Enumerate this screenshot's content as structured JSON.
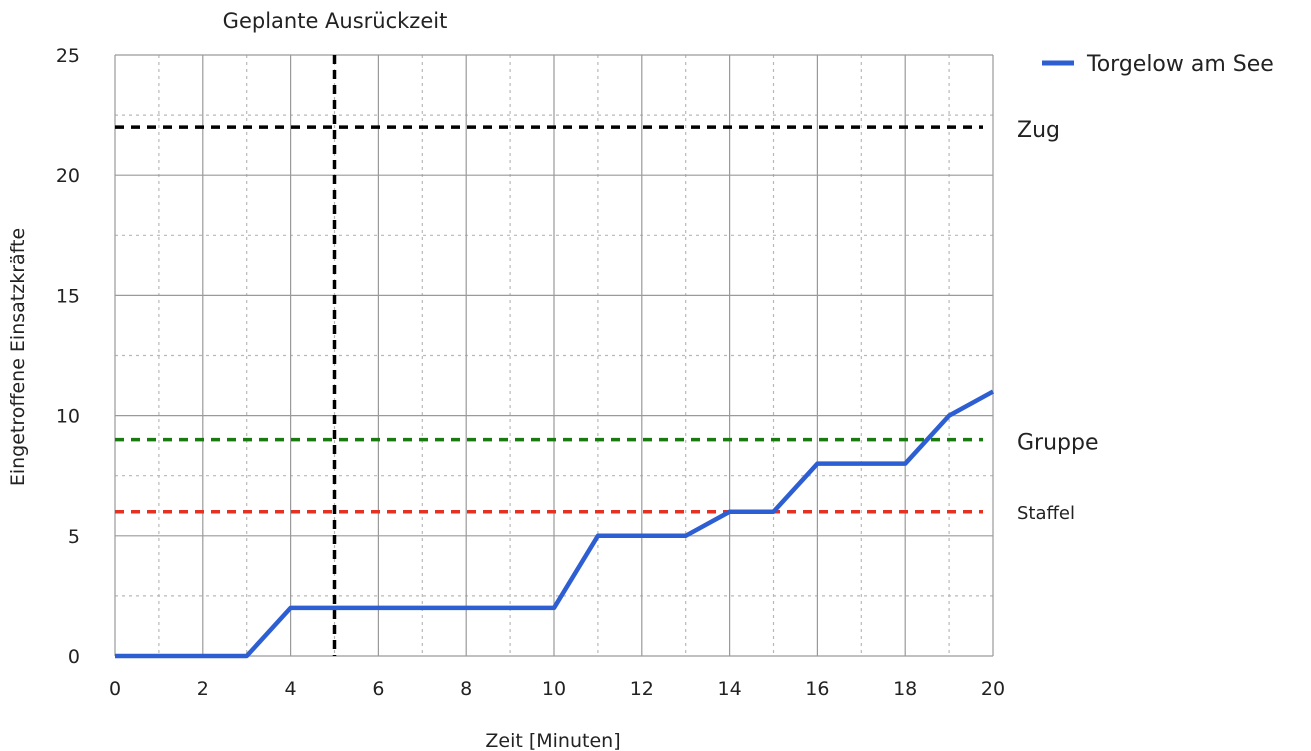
{
  "chart_data": {
    "type": "line",
    "xlabel": "Zeit [Minuten]",
    "ylabel": "Eingetroffene Einsatzkräfte",
    "xlim": [
      0,
      20
    ],
    "ylim": [
      0,
      25
    ],
    "x_ticks": [
      0,
      2,
      4,
      6,
      8,
      10,
      12,
      14,
      16,
      18,
      20
    ],
    "y_ticks": [
      0,
      5,
      10,
      15,
      20,
      25
    ],
    "x_minor_ticks": [
      1,
      3,
      5,
      7,
      9,
      11,
      13,
      15,
      17,
      19
    ],
    "y_minor_ticks": [
      2.5,
      7.5,
      12.5,
      17.5,
      22.5
    ],
    "grid": true,
    "legend_position": "top-right",
    "series": [
      {
        "name": "Torgelow am See",
        "color": "#2d5fd3",
        "x": [
          0,
          1,
          2,
          3,
          4,
          5,
          6,
          7,
          8,
          9,
          10,
          11,
          12,
          13,
          14,
          15,
          16,
          17,
          18,
          19,
          20
        ],
        "values": [
          0,
          0,
          0,
          0,
          2,
          2,
          2,
          2,
          2,
          2,
          2,
          5,
          5,
          5,
          6,
          6,
          8,
          8,
          8,
          10,
          11
        ]
      }
    ],
    "reference_lines": [
      {
        "label": "Zug",
        "y": 22,
        "color": "#000000",
        "label_size": "large"
      },
      {
        "label": "Gruppe",
        "y": 9,
        "color": "#1a7a10",
        "label_size": "large"
      },
      {
        "label": "Staffel",
        "y": 6,
        "color": "#e53022",
        "label_size": "small"
      }
    ],
    "vertical_marker": {
      "label": "Geplante Ausrückzeit",
      "x": 5,
      "color": "#000000"
    }
  }
}
